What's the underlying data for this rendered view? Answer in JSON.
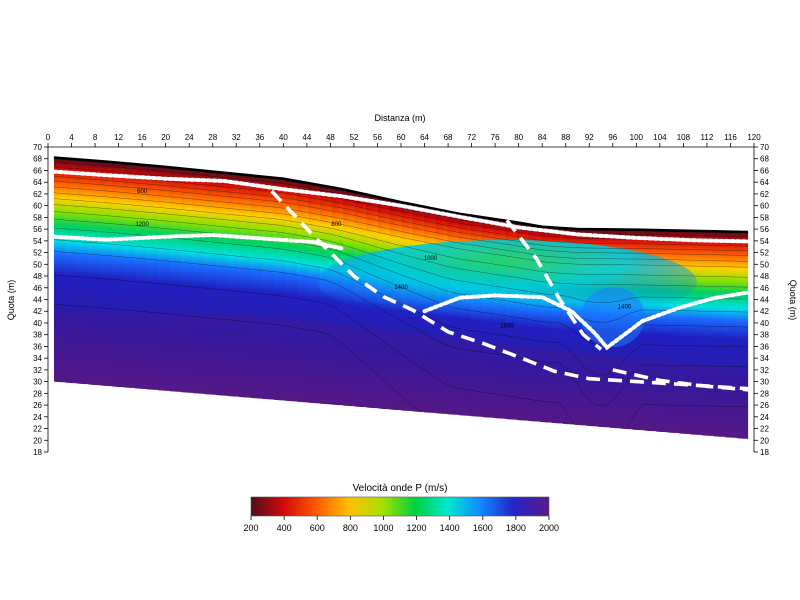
{
  "chart_data": {
    "type": "heatmap",
    "title": "Distanza (m)",
    "xlabel": "Distanza (m)",
    "ylabel_left": "Quota (m)",
    "ylabel_right": "Quota (m)",
    "xlim": [
      0,
      120
    ],
    "ylim": [
      18,
      70
    ],
    "x_ticks": [
      0,
      4,
      8,
      12,
      16,
      20,
      24,
      28,
      32,
      36,
      40,
      44,
      48,
      52,
      56,
      60,
      64,
      68,
      72,
      76,
      80,
      84,
      88,
      92,
      96,
      100,
      104,
      108,
      112,
      116,
      120
    ],
    "y_ticks": [
      18,
      20,
      22,
      24,
      26,
      28,
      30,
      32,
      34,
      36,
      38,
      40,
      42,
      44,
      46,
      48,
      50,
      52,
      54,
      56,
      58,
      60,
      62,
      64,
      66,
      68,
      70
    ],
    "colorbar": {
      "label": "Velocità onde P (m/s)",
      "ticks": [
        200,
        400,
        600,
        800,
        1000,
        1200,
        1400,
        1600,
        1800,
        2000
      ],
      "range": [
        200,
        2000
      ]
    },
    "surface_topography": [
      [
        1,
        68.2
      ],
      [
        10,
        67.5
      ],
      [
        20,
        66.6
      ],
      [
        30,
        65.6
      ],
      [
        40,
        64.6
      ],
      [
        50,
        62.8
      ],
      [
        60,
        60.6
      ],
      [
        70,
        58.6
      ],
      [
        80,
        57.1
      ],
      [
        84,
        56.4
      ],
      [
        90,
        56.0
      ],
      [
        100,
        55.9
      ],
      [
        110,
        55.7
      ],
      [
        119,
        55.5
      ]
    ],
    "model_bottom": [
      [
        1,
        30
      ],
      [
        119,
        20.2
      ]
    ],
    "contour_labels": [
      {
        "x": 16,
        "y": 62.2,
        "text": "600"
      },
      {
        "x": 16,
        "y": 56.5,
        "text": "1200"
      },
      {
        "x": 49,
        "y": 56.5,
        "text": "800"
      },
      {
        "x": 65,
        "y": 50.7,
        "text": "1000"
      },
      {
        "x": 60,
        "y": 45.8,
        "text": "1400"
      },
      {
        "x": 78,
        "y": 39.2,
        "text": "1600"
      },
      {
        "x": 98,
        "y": 42.5,
        "text": "1400"
      }
    ],
    "interpretive_lines": [
      {
        "style": "dotted",
        "points": [
          [
            1,
            65.8
          ],
          [
            10,
            65.2
          ],
          [
            20,
            64.6
          ],
          [
            30,
            64.2
          ],
          [
            40,
            62.8
          ],
          [
            50,
            61.6
          ],
          [
            60,
            60.0
          ],
          [
            70,
            58.1
          ],
          [
            80,
            56.3
          ],
          [
            90,
            55.1
          ],
          [
            100,
            54.5
          ],
          [
            110,
            54.1
          ],
          [
            119,
            53.9
          ]
        ]
      },
      {
        "style": "dotted",
        "points": [
          [
            1,
            54.7
          ],
          [
            10,
            54.2
          ],
          [
            20,
            54.7
          ],
          [
            28,
            55.0
          ],
          [
            35,
            54.5
          ],
          [
            45,
            53.8
          ],
          [
            50,
            52.7
          ]
        ]
      },
      {
        "style": "dotted",
        "points": [
          [
            64,
            42
          ],
          [
            70,
            44.3
          ],
          [
            76,
            44.7
          ],
          [
            84,
            44.4
          ],
          [
            89,
            42
          ],
          [
            93,
            38.2
          ],
          [
            95,
            35.8
          ],
          [
            97,
            37.3
          ],
          [
            101,
            40.3
          ],
          [
            107,
            42.5
          ],
          [
            113,
            44.2
          ],
          [
            119,
            45.2
          ]
        ]
      },
      {
        "style": "dashed",
        "points": [
          [
            38,
            62.5
          ],
          [
            45,
            55
          ],
          [
            52,
            48
          ],
          [
            57,
            44.5
          ],
          [
            62,
            42.2
          ],
          [
            68,
            38.5
          ],
          [
            74,
            36.5
          ],
          [
            80,
            34.2
          ],
          [
            86,
            31.8
          ],
          [
            92,
            30.5
          ],
          [
            100,
            30
          ],
          [
            108,
            29.5
          ],
          [
            119,
            28.8
          ]
        ]
      },
      {
        "style": "dashed",
        "points": [
          [
            78,
            57.5
          ],
          [
            83,
            51
          ],
          [
            87,
            44
          ],
          [
            91,
            38
          ],
          [
            94,
            35.5
          ]
        ]
      },
      {
        "style": "dashed",
        "points": [
          [
            96,
            32
          ],
          [
            104,
            30.2
          ],
          [
            112,
            29.2
          ],
          [
            119,
            28.6
          ]
        ]
      }
    ]
  }
}
